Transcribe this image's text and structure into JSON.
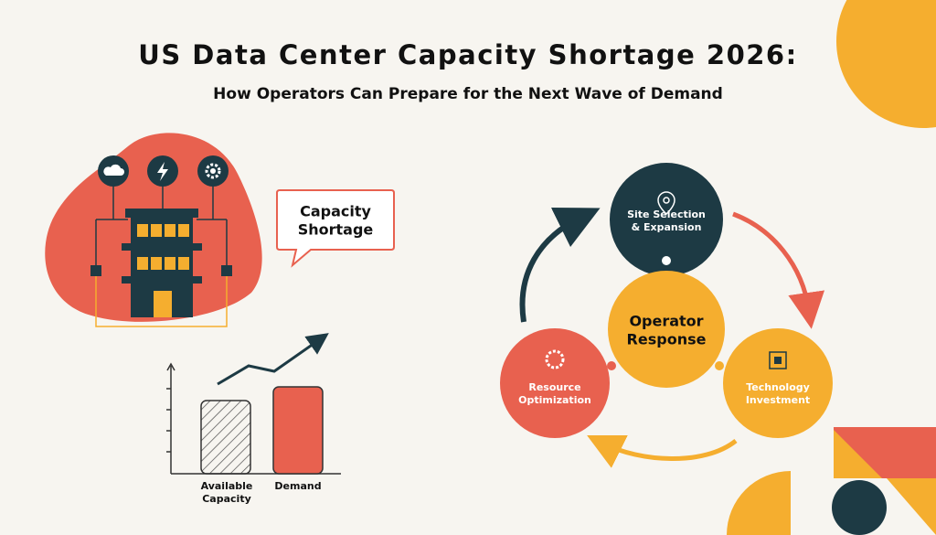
{
  "header": {
    "title": "US Data Center Capacity Shortage 2026:",
    "subtitle": "How Operators Can Prepare for the Next Wave of Demand"
  },
  "callout": {
    "lines": [
      "Capacity",
      "Shortage"
    ]
  },
  "bar_chart": {
    "bars": [
      {
        "lines": [
          "Available",
          "Capacity"
        ]
      },
      {
        "lines": [
          "Demand"
        ]
      }
    ]
  },
  "cycle": {
    "center": {
      "lines": [
        "Operator",
        "Response"
      ]
    },
    "nodes": [
      {
        "lines": [
          "Site Selection",
          "& Expansion"
        ]
      },
      {
        "lines": [
          "Technology",
          "Investment"
        ]
      },
      {
        "lines": [
          "Resource",
          "Optimization"
        ]
      }
    ]
  }
}
